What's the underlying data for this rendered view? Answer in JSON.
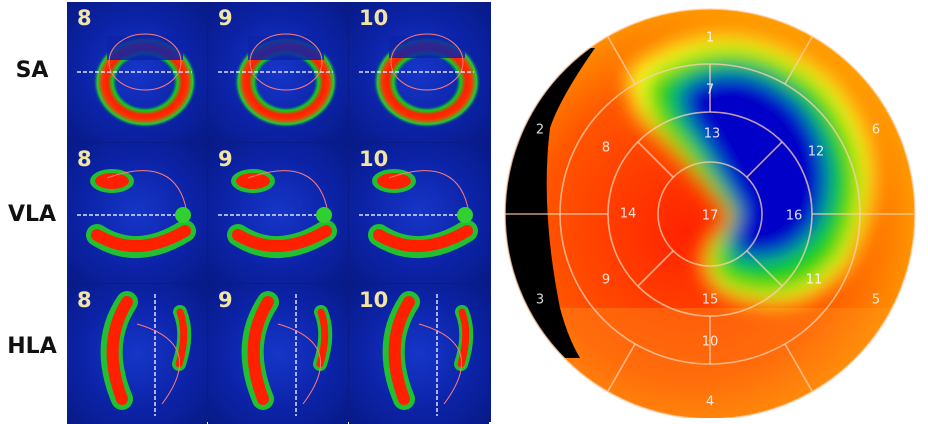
{
  "rows": [
    {
      "label": "SA",
      "slices": [
        "8",
        "9",
        "10"
      ]
    },
    {
      "label": "VLA",
      "slices": [
        "8",
        "9",
        "10"
      ]
    },
    {
      "label": "HLA",
      "slices": [
        "8",
        "9",
        "10"
      ]
    }
  ],
  "bullseye": {
    "segments": [
      {
        "id": "1",
        "label": "1"
      },
      {
        "id": "2",
        "label": "2"
      },
      {
        "id": "3",
        "label": "3"
      },
      {
        "id": "4",
        "label": "4"
      },
      {
        "id": "5",
        "label": "5"
      },
      {
        "id": "6",
        "label": "6"
      },
      {
        "id": "7",
        "label": "7"
      },
      {
        "id": "8",
        "label": "8"
      },
      {
        "id": "9",
        "label": "9"
      },
      {
        "id": "10",
        "label": "10"
      },
      {
        "id": "11",
        "label": "11"
      },
      {
        "id": "12",
        "label": "12"
      },
      {
        "id": "13",
        "label": "13"
      },
      {
        "id": "14",
        "label": "14"
      },
      {
        "id": "15",
        "label": "15"
      },
      {
        "id": "16",
        "label": "16"
      },
      {
        "id": "17",
        "label": "17"
      }
    ],
    "colors": {
      "perfusion_high": "#ff2a00",
      "perfusion_mid": "#ffa500",
      "perfusion_low": "#0000c8",
      "defect_border": "#000000"
    }
  }
}
